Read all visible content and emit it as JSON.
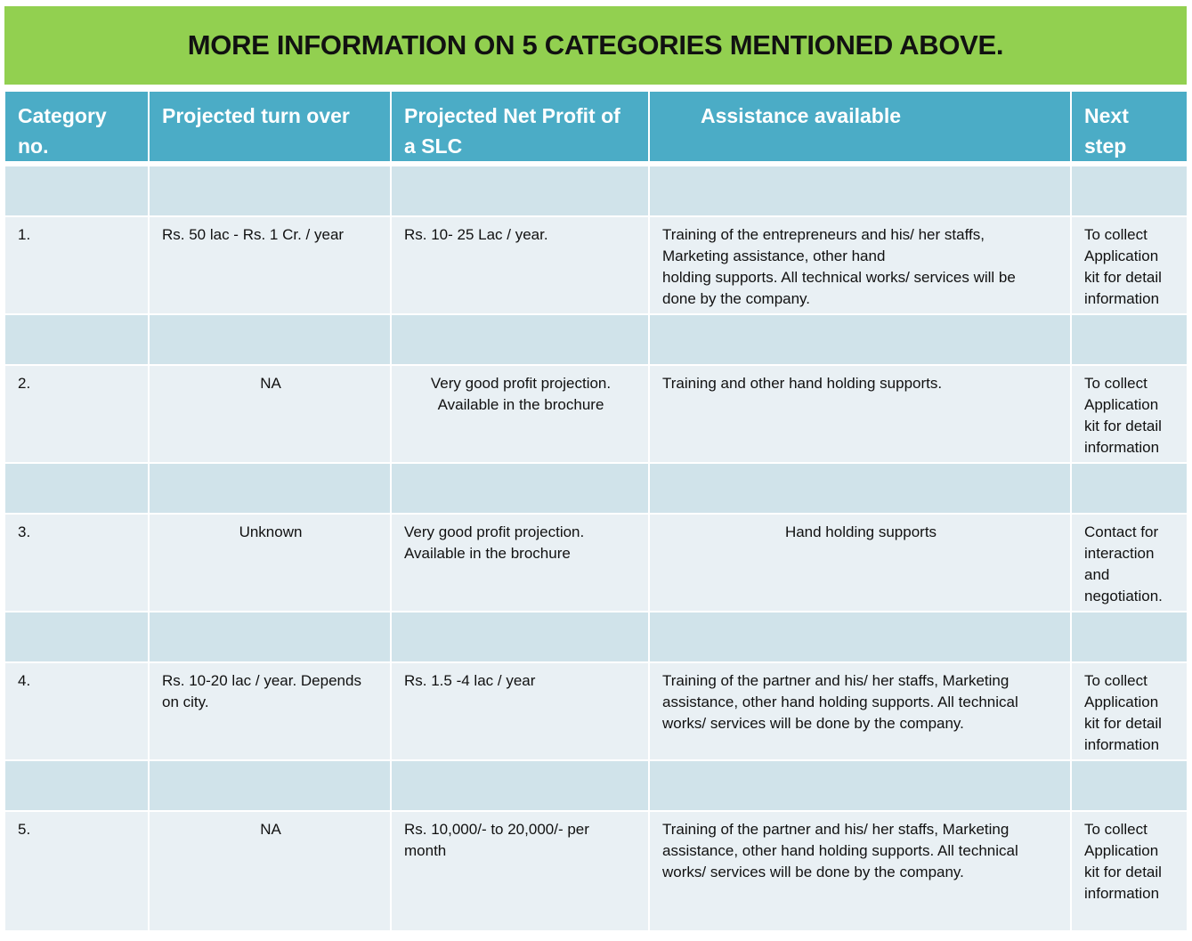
{
  "title": "MORE INFORMATION ON 5 CATEGORIES MENTIONED ABOVE.",
  "colors": {
    "banner": "#92d050",
    "header": "#4bacc6",
    "spacer_row": "#d0e3ea",
    "data_row": "#e9f0f4"
  },
  "table": {
    "headers": [
      "Category\nno.",
      "Projected turn over",
      "Projected Net Profit of\na SLC",
      "Assistance available",
      "Next\nstep"
    ],
    "rows": [
      [
        "1.",
        "Rs. 50 lac  - Rs. 1 Cr. / year",
        "Rs. 10- 25 Lac / year.",
        "Training of the entrepreneurs and his/ her staffs,\nMarketing assistance, other hand\nholding supports. All technical works/ services will be\ndone by the company.",
        "To collect\nApplication\nkit for detail\ninformation"
      ],
      [
        "2.",
        "NA",
        "Very good  profit  projection.\nAvailable in the brochure",
        "Training and other hand holding supports.",
        "To collect\nApplication\nkit for detail\ninformation"
      ],
      [
        "3.",
        "Unknown",
        "Very good  profit projection.\nAvailable in the brochure",
        "Hand holding supports",
        "Contact for\ninteraction\nand\nnegotiation."
      ],
      [
        "4.",
        "Rs. 10-20 lac / year. Depends\non city.",
        "Rs. 1.5 -4 lac / year",
        "Training of the partner and his/ her staffs, Marketing\nassistance, other hand holding supports. All technical\nworks/ services will be done by the company.",
        "To collect\nApplication\nkit for detail\ninformation"
      ],
      [
        "5.",
        "NA",
        "Rs. 10,000/- to 20,000/- per\nmonth",
        "Training of the partner and his/ her staffs, Marketing\nassistance, other hand  holding supports. All technical\nworks/ services will be done by the company.",
        "To collect\nApplication\nkit for detail\ninformation"
      ]
    ]
  }
}
